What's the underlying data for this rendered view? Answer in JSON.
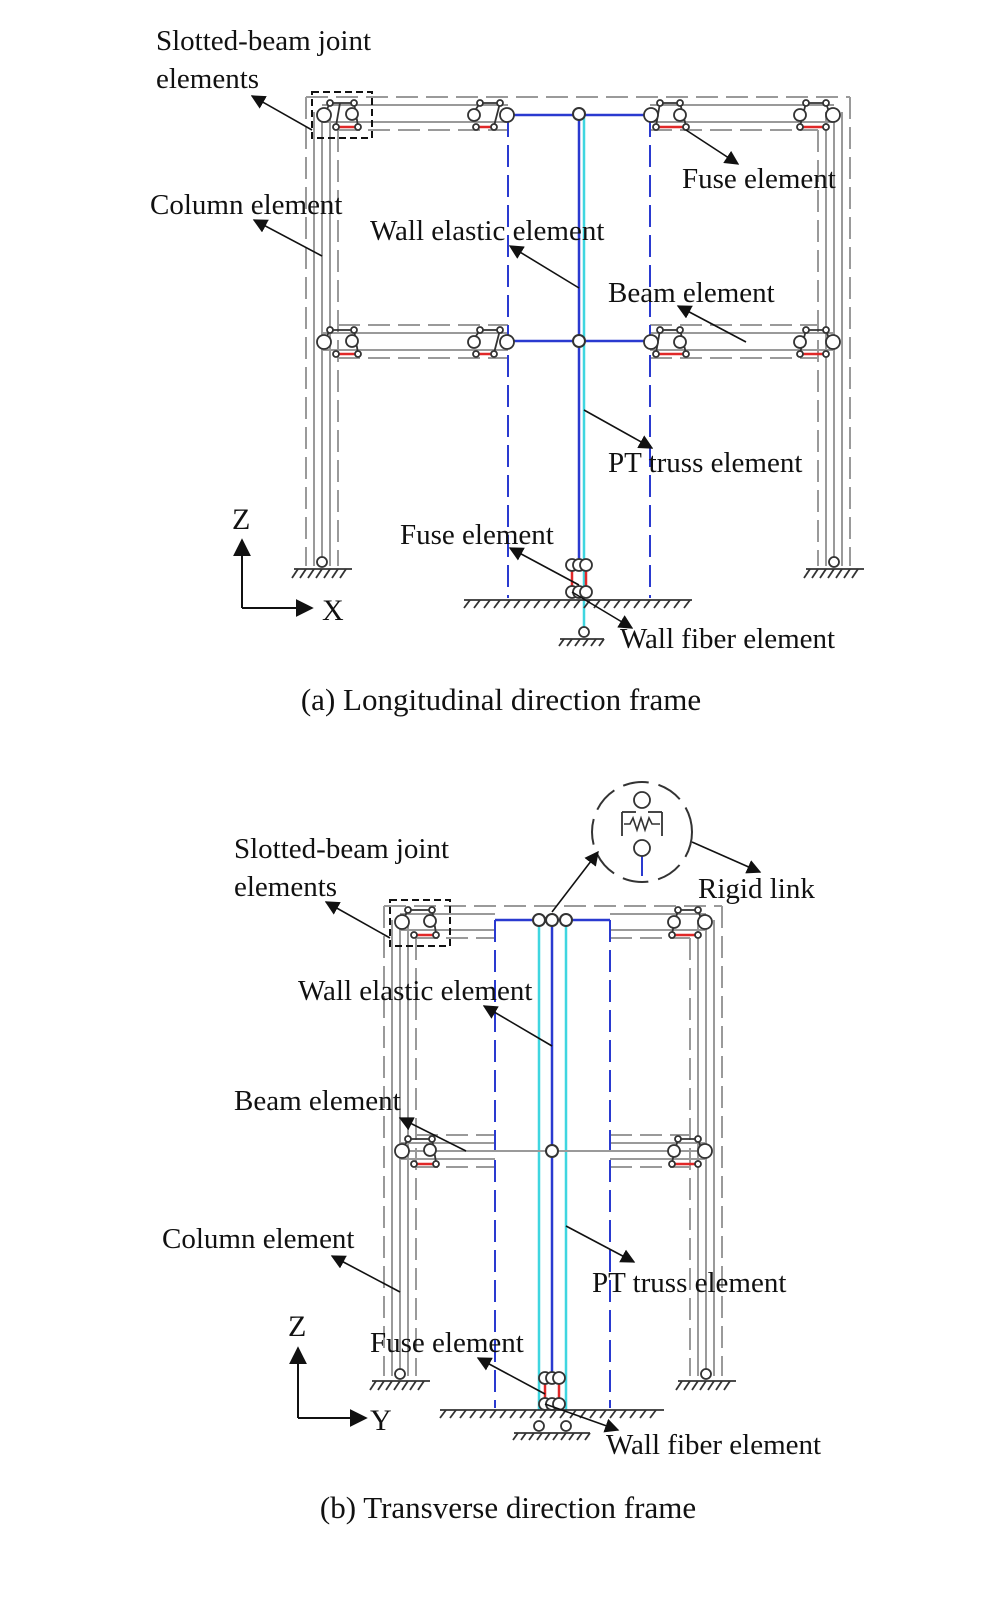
{
  "panel_a": {
    "caption": "(a) Longitudinal direction frame",
    "labels": {
      "slotted_line1": "Slotted-beam joint",
      "slotted_line2": "elements",
      "column": "Column element",
      "wall_elastic": "Wall elastic element",
      "fuse_top": "Fuse element",
      "beam": "Beam element",
      "pt_truss": "PT truss element",
      "fuse_base": "Fuse element",
      "wall_fiber": "Wall fiber element"
    },
    "axes": {
      "vertical": "Z",
      "horizontal": "X"
    }
  },
  "panel_b": {
    "caption": "(b) Transverse direction frame",
    "labels": {
      "slotted_line1": "Slotted-beam joint",
      "slotted_line2": "elements",
      "rigid_link": "Rigid link",
      "wall_elastic": "Wall elastic element",
      "beam": "Beam element",
      "column": "Column element",
      "pt_truss": "PT truss element",
      "fuse": "Fuse element",
      "wall_fiber": "Wall fiber element"
    },
    "axes": {
      "vertical": "Z",
      "horizontal": "Y"
    }
  },
  "colors": {
    "frame_gray": "#9a9a9a",
    "wall_blue": "#2a3ad0",
    "pt_cyan": "#3fd6e0",
    "fuse_red": "#e02828",
    "ink": "#111111"
  }
}
